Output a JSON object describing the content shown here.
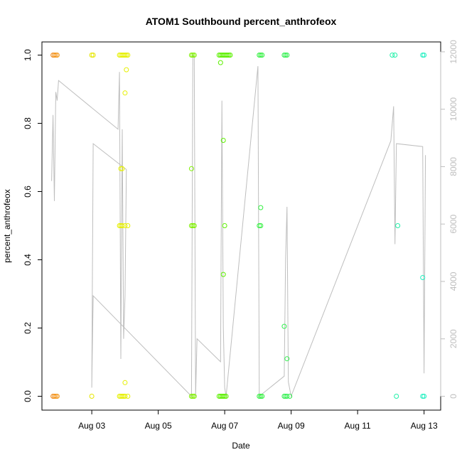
{
  "chart_data": {
    "type": "scatter",
    "title": "ATOM1 Southbound percent_anthrofeox",
    "xlabel": "Date",
    "ylabel": "percent_anthrofeox",
    "xlim": [
      "2023-08-01T12:00",
      "2023-08-13T12:00"
    ],
    "ylim": [
      0,
      1
    ],
    "y2lim": [
      0,
      12000
    ],
    "grid": false,
    "legend": "none",
    "x_ticks": [
      "Aug 03",
      "Aug 05",
      "Aug 07",
      "Aug 09",
      "Aug 11",
      "Aug 13"
    ],
    "x_tick_dates": [
      "2023-08-03",
      "2023-08-05",
      "2023-08-07",
      "2023-08-09",
      "2023-08-11",
      "2023-08-13"
    ],
    "y_ticks": [
      "0.0",
      "0.2",
      "0.4",
      "0.6",
      "0.8",
      "1.0"
    ],
    "y_tick_values": [
      0,
      0.2,
      0.4,
      0.6,
      0.8,
      1.0
    ],
    "y2_ticks": [
      "0",
      "2000",
      "4000",
      "6000",
      "8000",
      "10000",
      "12000"
    ],
    "y2_tick_values": [
      0,
      2000,
      4000,
      6000,
      8000,
      10000,
      12000
    ],
    "colors": {
      "axis": "#000000",
      "secondary_axis": "#bebebe",
      "line": "#bebebe"
    },
    "series": [
      {
        "values_axis": "left",
        "marker": "open-circle",
        "points": [
          {
            "x": "2023-08-01T20:00",
            "y": 1.0,
            "color": "#f08a1a"
          },
          {
            "x": "2023-08-01T21:00",
            "y": 1.0,
            "color": "#f08a1a"
          },
          {
            "x": "2023-08-01T22:00",
            "y": 1.0,
            "color": "#f5991a"
          },
          {
            "x": "2023-08-01T23:00",
            "y": 1.0,
            "color": "#f5991a"
          },
          {
            "x": "2023-08-01T20:00",
            "y": 0.0,
            "color": "#f08a1a"
          },
          {
            "x": "2023-08-01T21:00",
            "y": 0.0,
            "color": "#f08a1a"
          },
          {
            "x": "2023-08-01T22:00",
            "y": 0.0,
            "color": "#f5991a"
          },
          {
            "x": "2023-08-01T23:00",
            "y": 0.0,
            "color": "#f5991a"
          },
          {
            "x": "2023-08-03T00:00",
            "y": 1.0,
            "color": "#e6e600"
          },
          {
            "x": "2023-08-03T01:00",
            "y": 1.0,
            "color": "#e6e600"
          },
          {
            "x": "2023-08-03T00:00",
            "y": 0.0,
            "color": "#e6e600"
          },
          {
            "x": "2023-08-03T20:00",
            "y": 1.0,
            "color": "#e6f000"
          },
          {
            "x": "2023-08-03T21:00",
            "y": 1.0,
            "color": "#e6f000"
          },
          {
            "x": "2023-08-03T22:00",
            "y": 1.0,
            "color": "#e6f000"
          },
          {
            "x": "2023-08-03T23:00",
            "y": 1.0,
            "color": "#e6f000"
          },
          {
            "x": "2023-08-04T00:00",
            "y": 1.0,
            "color": "#e6f000"
          },
          {
            "x": "2023-08-04T01:00",
            "y": 1.0,
            "color": "#e6f000"
          },
          {
            "x": "2023-08-04T02:00",
            "y": 1.0,
            "color": "#e6f000"
          },
          {
            "x": "2023-08-04T01:00",
            "y": 0.957,
            "color": "#e6f000"
          },
          {
            "x": "2023-08-04T00:00",
            "y": 0.889,
            "color": "#e6f000"
          },
          {
            "x": "2023-08-03T21:00",
            "y": 0.667,
            "color": "#e6f000"
          },
          {
            "x": "2023-08-03T22:00",
            "y": 0.667,
            "color": "#e6f000"
          },
          {
            "x": "2023-08-03T20:00",
            "y": 0.5,
            "color": "#e6f000"
          },
          {
            "x": "2023-08-03T21:00",
            "y": 0.5,
            "color": "#e6f000"
          },
          {
            "x": "2023-08-03T22:00",
            "y": 0.5,
            "color": "#e6f000"
          },
          {
            "x": "2023-08-04T00:00",
            "y": 0.5,
            "color": "#e6f000"
          },
          {
            "x": "2023-08-04T02:00",
            "y": 0.5,
            "color": "#e6f000"
          },
          {
            "x": "2023-08-04T00:00",
            "y": 0.04,
            "color": "#e6f000"
          },
          {
            "x": "2023-08-03T20:00",
            "y": 0.0,
            "color": "#e6f000"
          },
          {
            "x": "2023-08-03T21:00",
            "y": 0.0,
            "color": "#e6f000"
          },
          {
            "x": "2023-08-03T22:00",
            "y": 0.0,
            "color": "#e6f000"
          },
          {
            "x": "2023-08-03T23:00",
            "y": 0.0,
            "color": "#e6f000"
          },
          {
            "x": "2023-08-04T00:00",
            "y": 0.0,
            "color": "#e6f000"
          },
          {
            "x": "2023-08-04T02:00",
            "y": 0.0,
            "color": "#e6f000"
          },
          {
            "x": "2023-08-06T00:00",
            "y": 1.0,
            "color": "#7ff000"
          },
          {
            "x": "2023-08-06T01:00",
            "y": 1.0,
            "color": "#7ff000"
          },
          {
            "x": "2023-08-06T02:00",
            "y": 1.0,
            "color": "#7ff000"
          },
          {
            "x": "2023-08-06T00:00",
            "y": 0.667,
            "color": "#7ff000"
          },
          {
            "x": "2023-08-06T00:00",
            "y": 0.5,
            "color": "#7ff000"
          },
          {
            "x": "2023-08-06T01:00",
            "y": 0.5,
            "color": "#7ff000"
          },
          {
            "x": "2023-08-06T02:00",
            "y": 0.5,
            "color": "#7ff000"
          },
          {
            "x": "2023-08-06T00:00",
            "y": 0.0,
            "color": "#7ff000"
          },
          {
            "x": "2023-08-06T01:00",
            "y": 0.0,
            "color": "#7ff000"
          },
          {
            "x": "2023-08-06T02:00",
            "y": 0.0,
            "color": "#7ff000"
          },
          {
            "x": "2023-08-06T20:00",
            "y": 1.0,
            "color": "#5cf000"
          },
          {
            "x": "2023-08-06T21:00",
            "y": 1.0,
            "color": "#5cf000"
          },
          {
            "x": "2023-08-06T22:00",
            "y": 1.0,
            "color": "#5cf000"
          },
          {
            "x": "2023-08-06T23:00",
            "y": 1.0,
            "color": "#5cf000"
          },
          {
            "x": "2023-08-07T00:00",
            "y": 1.0,
            "color": "#5cf000"
          },
          {
            "x": "2023-08-07T01:00",
            "y": 1.0,
            "color": "#5cf000"
          },
          {
            "x": "2023-08-07T02:00",
            "y": 1.0,
            "color": "#5cf000"
          },
          {
            "x": "2023-08-07T03:00",
            "y": 1.0,
            "color": "#5cf000"
          },
          {
            "x": "2023-08-07T04:00",
            "y": 1.0,
            "color": "#5cf000"
          },
          {
            "x": "2023-08-06T21:00",
            "y": 0.978,
            "color": "#5cf000"
          },
          {
            "x": "2023-08-06T23:00",
            "y": 0.75,
            "color": "#5cf000"
          },
          {
            "x": "2023-08-07T00:00",
            "y": 0.5,
            "color": "#5cf000"
          },
          {
            "x": "2023-08-06T23:00",
            "y": 0.357,
            "color": "#5cf000"
          },
          {
            "x": "2023-08-06T20:00",
            "y": 0.0,
            "color": "#5cf000"
          },
          {
            "x": "2023-08-06T21:00",
            "y": 0.0,
            "color": "#5cf000"
          },
          {
            "x": "2023-08-06T22:00",
            "y": 0.0,
            "color": "#5cf000"
          },
          {
            "x": "2023-08-06T23:00",
            "y": 0.0,
            "color": "#5cf000"
          },
          {
            "x": "2023-08-07T00:00",
            "y": 0.0,
            "color": "#5cf000"
          },
          {
            "x": "2023-08-07T01:00",
            "y": 0.0,
            "color": "#5cf000"
          },
          {
            "x": "2023-08-08T01:00",
            "y": 1.0,
            "color": "#33f040"
          },
          {
            "x": "2023-08-08T02:00",
            "y": 1.0,
            "color": "#33f040"
          },
          {
            "x": "2023-08-08T03:00",
            "y": 1.0,
            "color": "#33f040"
          },
          {
            "x": "2023-08-08T02:00",
            "y": 0.553,
            "color": "#33f040"
          },
          {
            "x": "2023-08-08T01:00",
            "y": 0.5,
            "color": "#33f040"
          },
          {
            "x": "2023-08-08T02:00",
            "y": 0.5,
            "color": "#33f040"
          },
          {
            "x": "2023-08-08T01:00",
            "y": 0.0,
            "color": "#33f040"
          },
          {
            "x": "2023-08-08T02:00",
            "y": 0.0,
            "color": "#33f040"
          },
          {
            "x": "2023-08-08T03:00",
            "y": 0.0,
            "color": "#33f040"
          },
          {
            "x": "2023-08-08T19:00",
            "y": 1.0,
            "color": "#33f050"
          },
          {
            "x": "2023-08-08T20:00",
            "y": 1.0,
            "color": "#33f050"
          },
          {
            "x": "2023-08-08T21:00",
            "y": 1.0,
            "color": "#33f050"
          },
          {
            "x": "2023-08-08T19:00",
            "y": 0.205,
            "color": "#33f050"
          },
          {
            "x": "2023-08-08T21:00",
            "y": 0.11,
            "color": "#33f050"
          },
          {
            "x": "2023-08-08T19:00",
            "y": 0.0,
            "color": "#33f050"
          },
          {
            "x": "2023-08-08T20:00",
            "y": 0.0,
            "color": "#33f050"
          },
          {
            "x": "2023-08-08T21:00",
            "y": 0.0,
            "color": "#33f050"
          },
          {
            "x": "2023-08-08T23:00",
            "y": 0.0,
            "color": "#33f050"
          },
          {
            "x": "2023-08-12T01:00",
            "y": 1.0,
            "color": "#20f0a8"
          },
          {
            "x": "2023-08-12T03:00",
            "y": 1.0,
            "color": "#20f0a8"
          },
          {
            "x": "2023-08-12T05:00",
            "y": 0.5,
            "color": "#20f0a8"
          },
          {
            "x": "2023-08-12T04:00",
            "y": 0.0,
            "color": "#20f0a8"
          },
          {
            "x": "2023-08-12T23:00",
            "y": 1.0,
            "color": "#20f0c0"
          },
          {
            "x": "2023-08-13T00:00",
            "y": 1.0,
            "color": "#20f0c0"
          },
          {
            "x": "2023-08-12T23:00",
            "y": 0.348,
            "color": "#20f0c0"
          },
          {
            "x": "2023-08-12T23:00",
            "y": 0.0,
            "color": "#20f0c0"
          },
          {
            "x": "2023-08-13T00:00",
            "y": 0.0,
            "color": "#20f0c0"
          }
        ]
      },
      {
        "values_axis": "right",
        "marker": "line",
        "color": "#bebebe",
        "points": [
          {
            "x": "2023-08-01T19:00",
            "y": 7500
          },
          {
            "x": "2023-08-01T20:00",
            "y": 9800
          },
          {
            "x": "2023-08-01T21:00",
            "y": 6800
          },
          {
            "x": "2023-08-01T22:00",
            "y": 10600
          },
          {
            "x": "2023-08-01T23:00",
            "y": 10300
          },
          {
            "x": "2023-08-02T00:00",
            "y": 11000
          },
          {
            "x": "2023-08-03T19:00",
            "y": 9300
          },
          {
            "x": "2023-08-03T20:00",
            "y": 11300
          },
          {
            "x": "2023-08-03T21:00",
            "y": 1300
          },
          {
            "x": "2023-08-03T22:00",
            "y": 9300
          },
          {
            "x": "2023-08-03T23:00",
            "y": 2000
          },
          {
            "x": "2023-08-04T00:00",
            "y": 3500
          },
          {
            "x": "2023-08-04T01:00",
            "y": 7900
          },
          {
            "x": "2023-08-03T01:00",
            "y": 8800
          },
          {
            "x": "2023-08-03T00:00",
            "y": 300
          },
          {
            "x": "2023-08-03T01:00",
            "y": 3500
          },
          {
            "x": "2023-08-06T00:00",
            "y": 0
          },
          {
            "x": "2023-08-06T01:00",
            "y": 11900
          },
          {
            "x": "2023-08-06T02:00",
            "y": 11800
          },
          {
            "x": "2023-08-06T03:00",
            "y": 0
          },
          {
            "x": "2023-08-06T04:00",
            "y": 2000
          },
          {
            "x": "2023-08-06T21:00",
            "y": 1200
          },
          {
            "x": "2023-08-06T22:00",
            "y": 10300
          },
          {
            "x": "2023-08-06T23:00",
            "y": 2400
          },
          {
            "x": "2023-08-07T00:00",
            "y": 300
          },
          {
            "x": "2023-08-07T01:00",
            "y": 0
          },
          {
            "x": "2023-08-08T00:00",
            "y": 11500
          },
          {
            "x": "2023-08-08T01:00",
            "y": 0
          },
          {
            "x": "2023-08-08T19:00",
            "y": 700
          },
          {
            "x": "2023-08-08T20:00",
            "y": 4800
          },
          {
            "x": "2023-08-08T21:00",
            "y": 6600
          },
          {
            "x": "2023-08-08T22:00",
            "y": 500
          },
          {
            "x": "2023-08-09T00:00",
            "y": 0
          },
          {
            "x": "2023-08-12T00:00",
            "y": 8900
          },
          {
            "x": "2023-08-12T02:00",
            "y": 10100
          },
          {
            "x": "2023-08-12T03:00",
            "y": 5300
          },
          {
            "x": "2023-08-12T04:00",
            "y": 8800
          },
          {
            "x": "2023-08-12T23:00",
            "y": 8700
          },
          {
            "x": "2023-08-13T00:00",
            "y": 800
          },
          {
            "x": "2023-08-13T01:00",
            "y": 8400
          }
        ]
      }
    ]
  }
}
